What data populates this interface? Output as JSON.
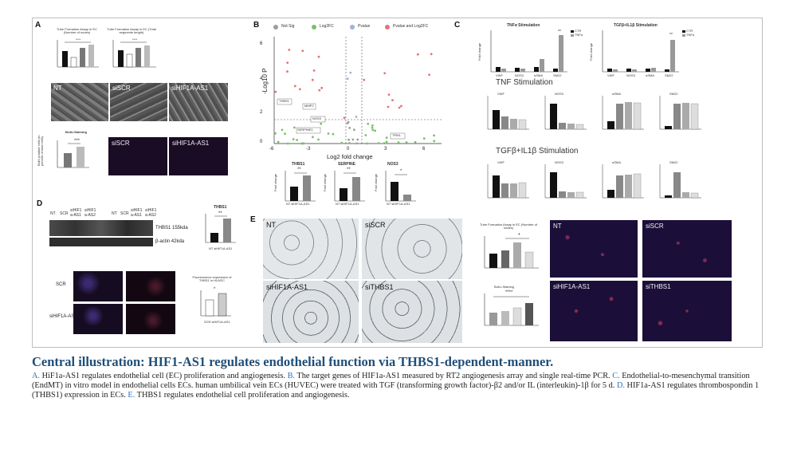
{
  "panels": {
    "a": {
      "letter": "A",
      "chart1_title": "Tube Formation Assay in EC (Number of nodes)",
      "chart2_title": "Tube Formation Assay in EC (Total segments length)",
      "sig": "****",
      "images": [
        "NT",
        "siSCR",
        "siHIF1A-AS1"
      ],
      "brdu_title": "BrdU-Staining",
      "brdu_sig": "***",
      "brdu_ylabel": "BrdU positive cells (in percent of total cells)",
      "fluor_images": [
        "siSCR",
        "siHIF1A-AS1"
      ]
    },
    "b": {
      "letter": "B",
      "legend": [
        "Not Sig",
        "Log2FC",
        "Pvalue",
        "Pvalue and Log2FC"
      ],
      "legend_colors": [
        "#9e9e9e",
        "#7bbf6a",
        "#9fb1d9",
        "#e57373"
      ],
      "ylabel": "-Log10 P",
      "xlabel": "Log2 fold change",
      "xticks": [
        "-6",
        "-3",
        "0",
        "3",
        "6"
      ],
      "yticks": [
        "0",
        "2",
        "4",
        "6"
      ],
      "gene_labels": [
        "THBS1",
        "MMP2",
        "NOS3",
        "SERPINE1",
        "TPM1"
      ],
      "bar_titles": [
        "THBS1",
        "SERPINE",
        "NOS3"
      ],
      "bar_sig": [
        "**",
        "**",
        "*"
      ],
      "bar_ylabel": "Fold change",
      "bar_xlabel": "NT siHIF1A-AS1"
    },
    "c": {
      "letter": "C",
      "tnfa_title": "TNFα Stimulation",
      "tgf_title": "TGFβ+IL1β Stimulation",
      "legend_tnf": [
        "CTR",
        "TNFα"
      ],
      "legend_tgf": [
        "CTR",
        "TNFα"
      ],
      "categories": [
        "VWF",
        "NOS3",
        "αSMA",
        "SM22"
      ],
      "tnf_title": "TNF Stimulation",
      "tgf2_title": "TGFβ+IL1β Stimulation",
      "ylabel": "Fold change",
      "sig": "**"
    },
    "d": {
      "letter": "D",
      "lane_labels": [
        "NT",
        "SCR",
        "siHIF1 a-AS1",
        "siHIF1 a-AS2",
        "NT",
        "SCR",
        "siHIF1 a-AS1",
        "siHIF1 a-AS2"
      ],
      "band1": "THBS1 155kda",
      "band2": "β-actin 42kda",
      "chart_title": "THBS1",
      "chart_sig": "**",
      "chart_xlabel": "NT siHIF1A-AS1",
      "row_labels": [
        "SCR",
        "siHIF1A-AS1"
      ],
      "fl_chart_title": "Fluorescence expression of THBS1 in HUVEC",
      "fl_sig": "*",
      "fl_xlabel": "SCR siHIF1A-AS1"
    },
    "e": {
      "letter": "E",
      "bright_images": [
        "NT",
        "siSCR",
        "siHIF1A-AS1",
        "siTHBS1"
      ],
      "chart1_title": "Tube Formation Assay in EC (Number of nodes)",
      "chart2_title": "BrdU-Staining",
      "chart1_sig": "*",
      "chart2_sig": "****",
      "fluor_images": [
        "NT",
        "siSCR",
        "siHIF1A-AS1",
        "siTHBS1"
      ]
    }
  },
  "caption": {
    "title": "Central illustration: HIF1-AS1 regulates endothelial function via THBS1-dependent-manner.",
    "parts": [
      {
        "letter": "A.",
        "text": " HiF1a-AS1 regulates endothelial cell (EC) proliferation and angiogenesis. "
      },
      {
        "letter": "B.",
        "text": " The target genes of HIF1a-AS1 measured by RT2 angiogenesis array and single real-time PCR. "
      },
      {
        "letter": "C.",
        "text": " Endothelial-to-mesenchymal transition (EndMT) in vitro model in endothelial cells ECs. human umbilical vein ECs (HUVEC) were treated with TGF (transforming growth factor)-β2 and/or IL (interleukin)-1β for 5 d. "
      },
      {
        "letter": "D.",
        "text": " HIF1a-AS1 regulates thrombospondin 1 (THBS1) expression in ECs. "
      },
      {
        "letter": "E.",
        "text": " THBS1 regulates endothelial cell proliferation and angiogenesis."
      }
    ]
  }
}
